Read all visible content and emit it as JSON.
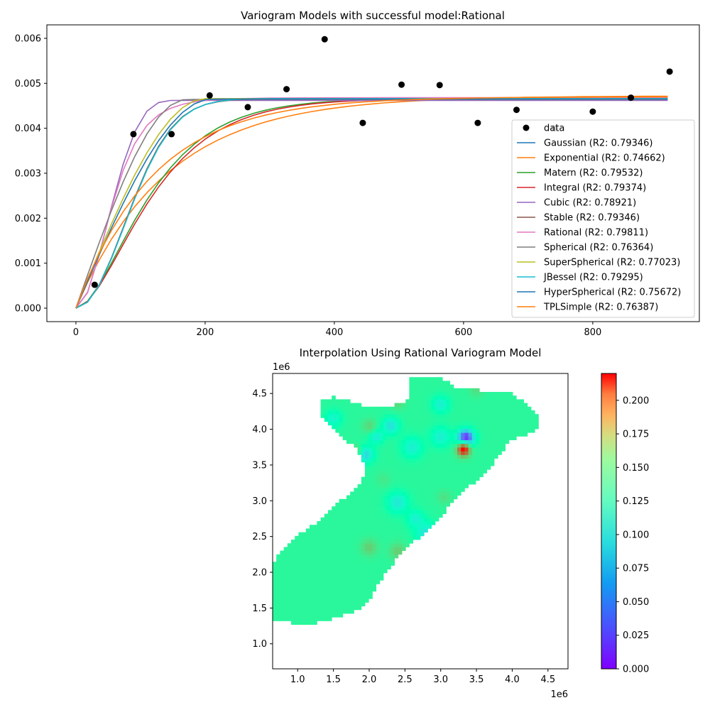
{
  "chart_data": [
    {
      "type": "scatter+line",
      "title": "Variogram Models with successful model:Rational",
      "xlabel": "",
      "ylabel": "",
      "xlim": [
        -45,
        965
      ],
      "ylim": [
        -0.0003,
        0.0063
      ],
      "xticks": [
        0,
        200,
        400,
        600,
        800
      ],
      "yticks": [
        0.0,
        0.001,
        0.002,
        0.003,
        0.004,
        0.005,
        0.006
      ],
      "ytick_labels": [
        "0.000",
        "0.001",
        "0.002",
        "0.003",
        "0.004",
        "0.005",
        "0.006"
      ],
      "legend_position": "center-right",
      "scatter": {
        "name": "data",
        "color": "#000000",
        "x": [
          29,
          89,
          148,
          207,
          266,
          326,
          385,
          444,
          504,
          563,
          622,
          682,
          741,
          800,
          859,
          919
        ],
        "y": [
          0.00052,
          0.00387,
          0.00387,
          0.00473,
          0.00447,
          0.00487,
          0.00598,
          0.00412,
          0.00497,
          0.00496,
          0.00412,
          0.00441,
          0.004,
          0.00437,
          0.00468,
          0.00526
        ]
      },
      "model_x": [
        0,
        18,
        36,
        55,
        73,
        91,
        110,
        128,
        146,
        165,
        183,
        201,
        220,
        238,
        256,
        275,
        293,
        311,
        330,
        348,
        366,
        385,
        403,
        421,
        440,
        458,
        476,
        495,
        513,
        531,
        550,
        568,
        586,
        605,
        623,
        641,
        660,
        678,
        696,
        715,
        733,
        751,
        770,
        788,
        806,
        825,
        843,
        861,
        880,
        898,
        916
      ],
      "series": [
        {
          "name": "Gaussian (R2: 0.79346)",
          "color": "#1f77b4",
          "sill": 0.00465,
          "range": 105,
          "kind": "gauss"
        },
        {
          "name": "Exponential (R2: 0.74662)",
          "color": "#ff7f0e",
          "sill": 0.00472,
          "range": 140,
          "kind": "expo"
        },
        {
          "name": "Matern (R2: 0.79532)",
          "color": "#2ca02c",
          "sill": 0.00466,
          "range": 108,
          "kind": "matern"
        },
        {
          "name": "Integral (R2: 0.79374)",
          "color": "#d62728",
          "sill": 0.00466,
          "range": 112,
          "kind": "matern"
        },
        {
          "name": "Cubic (R2: 0.78921)",
          "color": "#9467bd",
          "sill": 0.00462,
          "range": 160,
          "kind": "cubic"
        },
        {
          "name": "Stable (R2: 0.79346)",
          "color": "#8c564b",
          "sill": 0.00465,
          "range": 105,
          "kind": "gauss"
        },
        {
          "name": "Rational (R2: 0.79811)",
          "color": "#e377c2",
          "sill": 0.00468,
          "range": 112,
          "kind": "rational"
        },
        {
          "name": "Spherical (R2: 0.76364)",
          "color": "#7f7f7f",
          "sill": 0.00464,
          "range": 170,
          "kind": "sph"
        },
        {
          "name": "SuperSpherical (R2: 0.77023)",
          "color": "#bcbd22",
          "sill": 0.00466,
          "range": 200,
          "kind": "sph"
        },
        {
          "name": "JBessel (R2: 0.79295)",
          "color": "#17becf",
          "sill": 0.00466,
          "range": 106,
          "kind": "gauss"
        },
        {
          "name": "HyperSpherical (R2: 0.75672)",
          "color": "#1f77b4",
          "sill": 0.00465,
          "range": 210,
          "kind": "sph"
        },
        {
          "name": "TPLSimple (R2: 0.76387)",
          "color": "#ff7f0e",
          "sill": 0.0047,
          "range": 120,
          "kind": "expo"
        }
      ]
    },
    {
      "type": "heatmap",
      "title": "Interpolation Using Rational Variogram Model",
      "xlim": [
        0.65,
        4.78
      ],
      "ylim": [
        0.65,
        4.78
      ],
      "x_offset_label": "1e6",
      "y_offset_label": "1e6",
      "xticks": [
        1.0,
        1.5,
        2.0,
        2.5,
        3.0,
        3.5,
        4.0,
        4.5
      ],
      "xtick_labels": [
        "1.0",
        "1.5",
        "2.0",
        "2.5",
        "3.0",
        "3.5",
        "4.0",
        "4.5"
      ],
      "yticks": [
        1.0,
        1.5,
        2.0,
        2.5,
        3.0,
        3.5,
        4.0,
        4.5
      ],
      "ytick_labels": [
        "1.0",
        "1.5",
        "2.0",
        "2.5",
        "3.0",
        "3.5",
        "4.0",
        "4.5"
      ],
      "colormap": "rainbow",
      "colorbar": {
        "range": [
          0.0,
          0.22
        ],
        "ticks": [
          0.0,
          0.025,
          0.05,
          0.075,
          0.1,
          0.125,
          0.15,
          0.175,
          0.2
        ],
        "tick_labels": [
          "0.000",
          "0.025",
          "0.050",
          "0.075",
          "0.100",
          "0.125",
          "0.150",
          "0.175",
          "0.200"
        ]
      },
      "region_outline": [
        [
          0.65,
          1.35
        ],
        [
          0.85,
          1.3
        ],
        [
          1.2,
          1.28
        ],
        [
          1.5,
          1.35
        ],
        [
          1.8,
          1.45
        ],
        [
          2.0,
          1.6
        ],
        [
          2.2,
          1.95
        ],
        [
          2.5,
          2.35
        ],
        [
          2.8,
          2.55
        ],
        [
          3.1,
          2.9
        ],
        [
          3.4,
          3.2
        ],
        [
          3.6,
          3.35
        ],
        [
          3.75,
          3.55
        ],
        [
          3.9,
          3.75
        ],
        [
          4.0,
          3.85
        ],
        [
          4.15,
          3.9
        ],
        [
          4.3,
          3.95
        ],
        [
          4.38,
          4.05
        ],
        [
          4.35,
          4.2
        ],
        [
          4.2,
          4.35
        ],
        [
          4.0,
          4.5
        ],
        [
          3.5,
          4.55
        ],
        [
          3.2,
          4.6
        ],
        [
          3.0,
          4.72
        ],
        [
          2.55,
          4.75
        ],
        [
          2.55,
          4.4
        ],
        [
          2.4,
          4.35
        ],
        [
          2.25,
          4.33
        ],
        [
          2.1,
          4.3
        ],
        [
          1.9,
          4.33
        ],
        [
          1.7,
          4.4
        ],
        [
          1.5,
          4.45
        ],
        [
          1.35,
          4.4
        ],
        [
          1.3,
          4.3
        ],
        [
          1.35,
          4.15
        ],
        [
          1.55,
          3.95
        ],
        [
          1.8,
          3.75
        ],
        [
          1.9,
          3.6
        ],
        [
          1.95,
          3.4
        ],
        [
          1.85,
          3.2
        ],
        [
          1.6,
          3.0
        ],
        [
          1.4,
          2.8
        ],
        [
          1.2,
          2.65
        ],
        [
          0.9,
          2.45
        ],
        [
          0.68,
          2.2
        ],
        [
          0.65,
          1.8
        ]
      ],
      "base_value": 0.128,
      "features": [
        {
          "x": 3.35,
          "y": 3.88,
          "r": 0.12,
          "v": 0.0
        },
        {
          "x": 3.32,
          "y": 3.72,
          "r": 0.1,
          "v": 0.22
        },
        {
          "x": 2.6,
          "y": 3.75,
          "r": 0.15,
          "v": 0.085
        },
        {
          "x": 2.3,
          "y": 4.05,
          "r": 0.12,
          "v": 0.075
        },
        {
          "x": 1.95,
          "y": 3.65,
          "r": 0.12,
          "v": 0.07
        },
        {
          "x": 2.1,
          "y": 3.9,
          "r": 0.1,
          "v": 0.08
        },
        {
          "x": 3.0,
          "y": 3.9,
          "r": 0.14,
          "v": 0.085
        },
        {
          "x": 3.0,
          "y": 4.35,
          "r": 0.12,
          "v": 0.085
        },
        {
          "x": 2.4,
          "y": 2.98,
          "r": 0.15,
          "v": 0.08
        },
        {
          "x": 2.8,
          "y": 2.55,
          "r": 0.15,
          "v": 0.075
        },
        {
          "x": 2.65,
          "y": 2.75,
          "r": 0.12,
          "v": 0.085
        },
        {
          "x": 1.5,
          "y": 4.15,
          "r": 0.12,
          "v": 0.09
        },
        {
          "x": 2.0,
          "y": 2.35,
          "r": 0.12,
          "v": 0.155
        },
        {
          "x": 2.4,
          "y": 2.3,
          "r": 0.12,
          "v": 0.155
        },
        {
          "x": 2.4,
          "y": 4.38,
          "r": 0.1,
          "v": 0.15
        },
        {
          "x": 2.0,
          "y": 4.05,
          "r": 0.1,
          "v": 0.15
        },
        {
          "x": 1.8,
          "y": 3.7,
          "r": 0.08,
          "v": 0.16
        },
        {
          "x": 3.05,
          "y": 3.05,
          "r": 0.1,
          "v": 0.145
        },
        {
          "x": 2.2,
          "y": 3.3,
          "r": 0.1,
          "v": 0.14
        },
        {
          "x": 3.5,
          "y": 4.55,
          "r": 0.1,
          "v": 0.145
        }
      ]
    }
  ]
}
